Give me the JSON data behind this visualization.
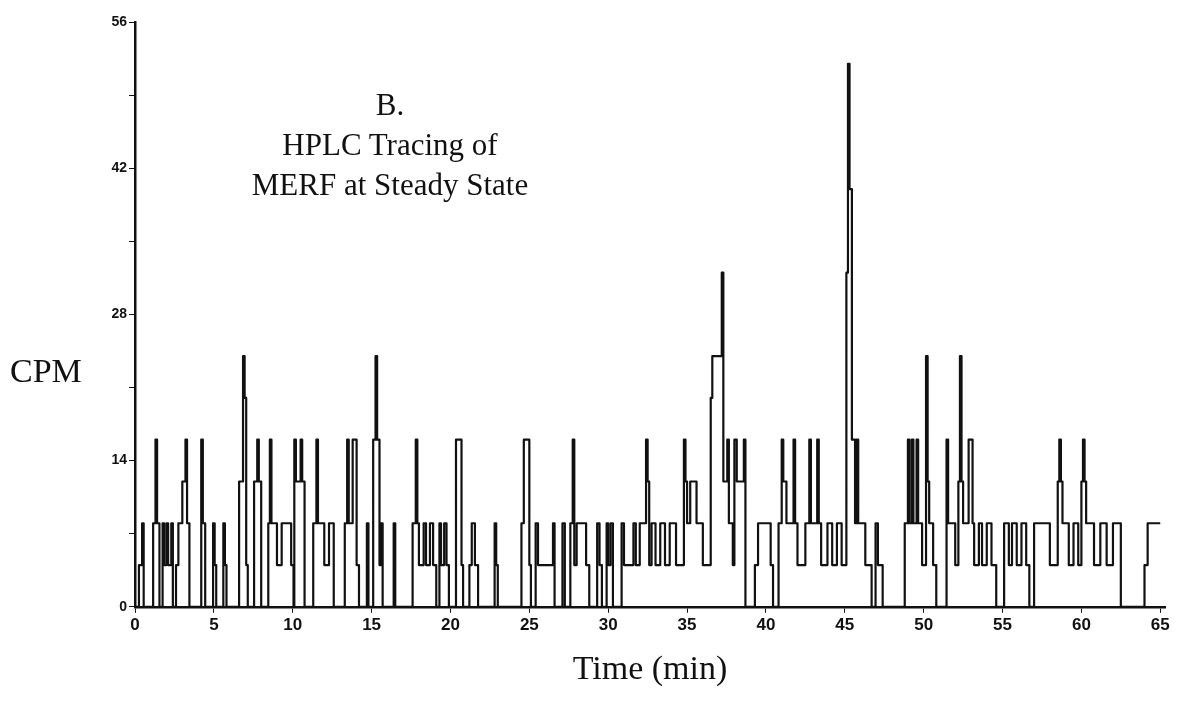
{
  "chart_data": {
    "type": "step",
    "xlabel": "Time (min)",
    "ylabel": "CPM",
    "annotations": [
      "B.",
      "HPLC Tracing of",
      "MERF at Steady State"
    ],
    "xlim": [
      0,
      65.3
    ],
    "ylim": [
      0,
      56
    ],
    "xticks": [
      0,
      5,
      10,
      15,
      20,
      25,
      30,
      35,
      40,
      45,
      50,
      55,
      60,
      65
    ],
    "yticks": [
      0,
      {
        "value": 7,
        "label": null
      },
      14,
      {
        "value": 21,
        "label": null
      },
      28,
      {
        "value": 35,
        "label": null
      },
      42,
      {
        "value": 49,
        "label": null
      },
      56
    ],
    "grid": false,
    "legend": false,
    "marker": "none",
    "line_style": "solid",
    "series": [
      {
        "color": "#111111",
        "x": [
          0,
          0.25,
          0.45,
          0.55,
          1.15,
          1.3,
          1.4,
          1.55,
          1.75,
          1.85,
          2.0,
          2.1,
          2.3,
          2.4,
          2.6,
          2.75,
          3.0,
          3.2,
          3.3,
          3.45,
          4.2,
          4.3,
          4.45,
          4.95,
          5.05,
          5.15,
          5.6,
          5.7,
          5.8,
          6.6,
          6.85,
          6.95,
          7.05,
          7.15,
          7.55,
          7.75,
          7.85,
          8.0,
          8.45,
          8.55,
          8.65,
          9.0,
          9.3,
          9.9,
          10.05,
          10.1,
          10.2,
          10.5,
          10.6,
          10.75,
          11.3,
          11.5,
          11.6,
          12.0,
          12.3,
          12.6,
          13.3,
          13.45,
          13.55,
          13.8,
          14.05,
          14.2,
          14.7,
          14.8,
          15.1,
          15.25,
          15.35,
          15.5,
          15.6,
          15.7,
          16.4,
          16.5,
          17.6,
          17.8,
          17.9,
          18.0,
          18.3,
          18.45,
          18.7,
          18.9,
          19.1,
          19.3,
          19.4,
          19.6,
          19.75,
          19.9,
          20.35,
          20.7,
          20.8,
          21.2,
          21.35,
          21.55,
          21.75,
          22.8,
          22.9,
          23.0,
          24.5,
          24.65,
          25.0,
          25.1,
          25.4,
          25.55,
          26.5,
          26.6,
          27.1,
          27.25,
          27.6,
          27.75,
          27.85,
          28.0,
          28.6,
          28.8,
          29.3,
          29.45,
          29.6,
          29.9,
          30.0,
          30.15,
          30.3,
          30.85,
          31.0,
          31.6,
          31.75,
          32.0,
          32.4,
          32.5,
          32.6,
          32.75,
          33.0,
          33.3,
          33.6,
          33.9,
          34.3,
          34.8,
          34.9,
          35.0,
          35.2,
          35.6,
          36.0,
          36.5,
          36.6,
          37.2,
          37.3,
          37.55,
          37.65,
          37.9,
          38.0,
          38.15,
          38.6,
          38.7,
          39.3,
          39.5,
          40.3,
          40.45,
          40.8,
          41.0,
          41.1,
          41.3,
          41.75,
          41.85,
          42.0,
          42.5,
          42.75,
          42.85,
          43.25,
          43.35,
          43.5,
          43.9,
          44.2,
          44.5,
          44.8,
          45.1,
          45.2,
          45.3,
          45.45,
          45.65,
          45.75,
          45.85,
          46.3,
          46.7,
          46.95,
          47.1,
          47.4,
          48.8,
          49.0,
          49.1,
          49.25,
          49.35,
          49.55,
          49.65,
          49.9,
          50.15,
          50.25,
          50.35,
          50.6,
          50.8,
          51.45,
          51.55,
          52.0,
          52.2,
          52.3,
          52.4,
          52.5,
          52.85,
          53.1,
          53.2,
          53.5,
          53.7,
          54.0,
          54.3,
          54.6,
          55.1,
          55.4,
          55.6,
          55.9,
          56.2,
          56.5,
          56.7,
          57.0,
          58.0,
          58.5,
          58.6,
          58.7,
          58.8,
          59.2,
          59.5,
          59.8,
          60.0,
          60.1,
          60.2,
          60.3,
          60.8,
          61.2,
          61.6,
          62.0,
          62.5,
          64.0,
          64.2,
          64.4,
          65.0
        ],
        "values": [
          0,
          4,
          8,
          0,
          8,
          16,
          8,
          0,
          8,
          4,
          8,
          4,
          8,
          0,
          4,
          8,
          12,
          16,
          8,
          0,
          16,
          8,
          0,
          8,
          4,
          0,
          8,
          4,
          0,
          12,
          24,
          20,
          4,
          0,
          12,
          16,
          12,
          0,
          8,
          16,
          8,
          4,
          8,
          4,
          0,
          16,
          12,
          16,
          12,
          0,
          8,
          16,
          8,
          4,
          8,
          0,
          8,
          16,
          8,
          16,
          4,
          0,
          8,
          0,
          16,
          24,
          16,
          4,
          8,
          0,
          8,
          0,
          8,
          16,
          8,
          4,
          8,
          4,
          8,
          4,
          0,
          8,
          4,
          8,
          4,
          0,
          16,
          4,
          0,
          4,
          8,
          4,
          0,
          8,
          4,
          0,
          8,
          16,
          4,
          0,
          8,
          4,
          8,
          0,
          8,
          0,
          8,
          16,
          4,
          8,
          4,
          0,
          8,
          4,
          0,
          8,
          4,
          8,
          0,
          8,
          4,
          8,
          4,
          8,
          16,
          12,
          4,
          8,
          4,
          8,
          4,
          8,
          4,
          16,
          12,
          8,
          12,
          8,
          4,
          20,
          24,
          32,
          12,
          16,
          8,
          4,
          16,
          12,
          16,
          0,
          4,
          8,
          4,
          0,
          8,
          16,
          12,
          8,
          16,
          8,
          4,
          8,
          16,
          8,
          16,
          8,
          4,
          8,
          4,
          8,
          4,
          32,
          52,
          40,
          16,
          8,
          16,
          8,
          4,
          0,
          8,
          4,
          0,
          8,
          16,
          8,
          16,
          8,
          16,
          8,
          4,
          24,
          12,
          8,
          4,
          0,
          16,
          8,
          4,
          12,
          24,
          12,
          8,
          16,
          8,
          4,
          8,
          4,
          8,
          4,
          0,
          8,
          4,
          8,
          4,
          8,
          4,
          0,
          8,
          4,
          12,
          16,
          12,
          8,
          4,
          8,
          4,
          12,
          16,
          12,
          8,
          4,
          8,
          4,
          8,
          0,
          4,
          8,
          8,
          8
        ]
      }
    ]
  }
}
